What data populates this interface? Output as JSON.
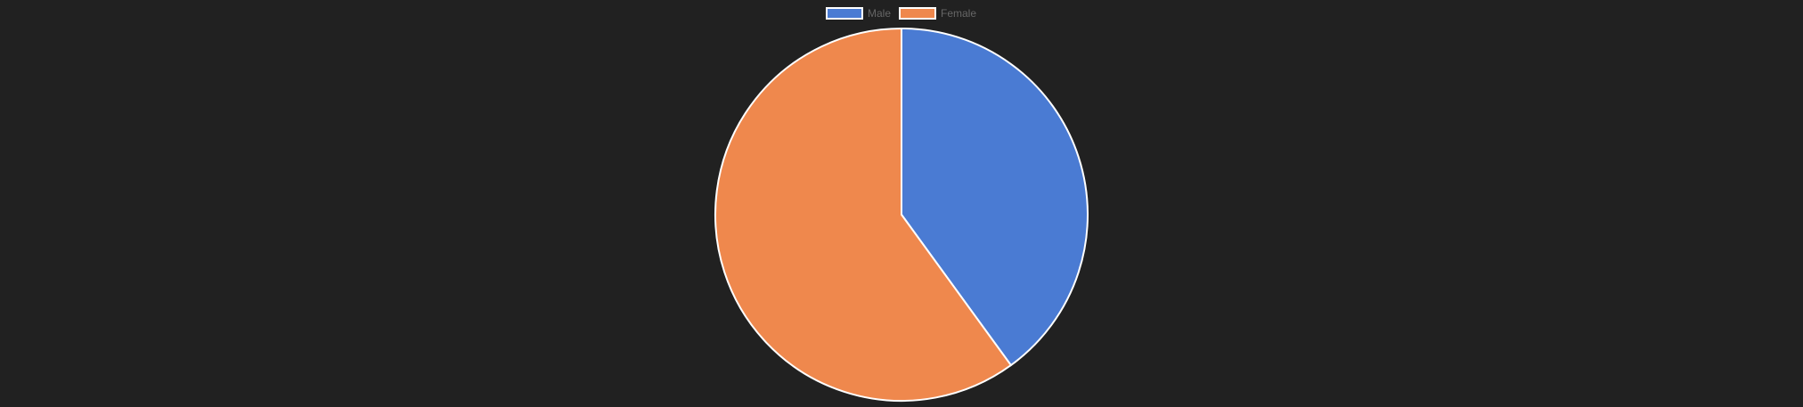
{
  "chart_data": {
    "type": "pie",
    "title": "",
    "legend_position": "top",
    "slices": [
      {
        "label": "Male",
        "value": 40,
        "color": "#4a7bd3"
      },
      {
        "label": "Female",
        "value": 60,
        "color": "#ef884d"
      }
    ],
    "border_color": "#ffffff",
    "legend_text_color": "#666666",
    "background_color": "#212121"
  }
}
